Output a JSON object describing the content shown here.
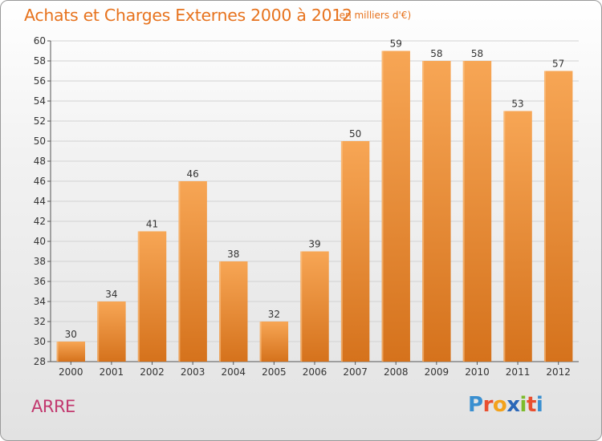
{
  "title": "Achats et Charges Externes 2000 à 2012",
  "unit_note": "(en milliers d'€)",
  "place_name": "ARRE",
  "logo": {
    "text": "Proxiti",
    "letters": [
      {
        "ch": "P",
        "color": "#3a8fd0"
      },
      {
        "ch": "r",
        "color": "#e94f2f"
      },
      {
        "ch": "o",
        "color": "#f3a21b"
      },
      {
        "ch": "x",
        "color": "#2b67b8"
      },
      {
        "ch": "i",
        "color": "#7dbb2c"
      },
      {
        "ch": "t",
        "color": "#e94f2f"
      },
      {
        "ch": "i",
        "color": "#3a8fd0"
      }
    ]
  },
  "colors": {
    "bar_top": "#f7a655",
    "bar_bottom": "#d5721c",
    "title": "#e7731e",
    "place": "#c2386e"
  },
  "chart_data": {
    "type": "bar",
    "title": "Achats et Charges Externes 2000 à 2012",
    "subtitle": "(en milliers d'€)",
    "xlabel": "",
    "ylabel": "",
    "categories": [
      "2000",
      "2001",
      "2002",
      "2003",
      "2004",
      "2005",
      "2006",
      "2007",
      "2008",
      "2009",
      "2010",
      "2011",
      "2012"
    ],
    "values": [
      30,
      34,
      41,
      46,
      38,
      32,
      39,
      50,
      59,
      58,
      58,
      53,
      57
    ],
    "ylim": [
      28,
      60
    ],
    "yticks": [
      28,
      30,
      32,
      34,
      36,
      38,
      40,
      42,
      44,
      46,
      48,
      50,
      52,
      54,
      56,
      58,
      60
    ],
    "grid": true,
    "legend": "none"
  }
}
